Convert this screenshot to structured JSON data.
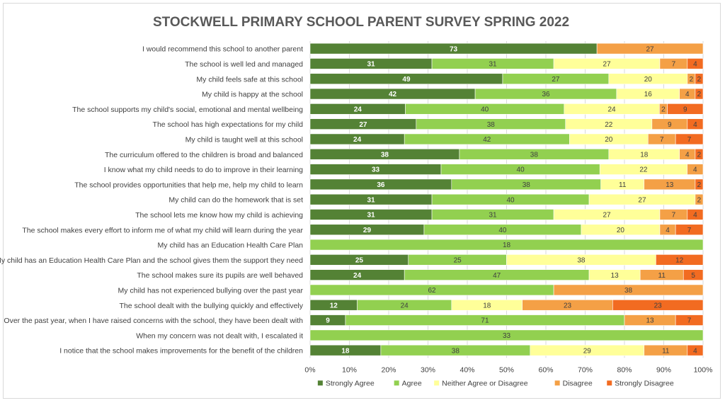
{
  "chart_data": {
    "type": "bar",
    "orientation": "horizontal",
    "stacked": "percent",
    "title": "STOCKWELL PRIMARY SCHOOL PARENT SURVEY SPRING 2022",
    "xlim": [
      0,
      100
    ],
    "x_ticks": [
      "0%",
      "10%",
      "20%",
      "30%",
      "40%",
      "50%",
      "60%",
      "70%",
      "80%",
      "90%",
      "100%"
    ],
    "grid": true,
    "legend_position": "bottom",
    "categories": [
      "I would recommend this school to another parent",
      "The school is well led and managed",
      "My child feels safe at this school",
      "My child is happy at the school",
      "The school supports my child's social, emotional and mental wellbeing",
      "The school has high expectations for my child",
      "My child is taught well at this school",
      "The curriculum offered to the children is broad and balanced",
      "I know what my child needs to do to improve in their learning",
      "The school provides opportunities that help me, help my child to learn",
      "My child can do the homework that is set",
      "The school lets me know how my child is achieving",
      "The school makes every effort to inform me of what my child will learn during the year",
      "My child has an Education Health Care Plan",
      "My child has an Education Health Care Plan and the school gives them the support they need",
      "The school makes sure its pupils are well behaved",
      "My child has not experienced bullying over the past year",
      "The school dealt with the bullying quickly and effectively",
      "Over the past year, when I have raised concerns with the school, they have been dealt with",
      "When my concern was not dealt with, I escalated it",
      "I notice that the school makes improvements for the benefit of the children"
    ],
    "series": [
      {
        "name": "Strongly Agree",
        "color": "#548235",
        "label_color": "#ffffff",
        "values": [
          73,
          31,
          49,
          42,
          24,
          27,
          24,
          38,
          33,
          36,
          31,
          31,
          29,
          0,
          25,
          24,
          0,
          12,
          9,
          0,
          18
        ]
      },
      {
        "name": "Agree",
        "color": "#92d050",
        "label_color": "#404040",
        "values": [
          0,
          31,
          27,
          36,
          40,
          38,
          42,
          38,
          40,
          38,
          40,
          31,
          40,
          18,
          25,
          47,
          62,
          24,
          71,
          33,
          38
        ]
      },
      {
        "name": "Neither Agree or Disagree",
        "color": "#ffff99",
        "label_color": "#404040",
        "values": [
          0,
          27,
          20,
          16,
          24,
          22,
          20,
          18,
          22,
          11,
          27,
          27,
          20,
          0,
          38,
          13,
          0,
          18,
          0,
          0,
          29
        ]
      },
      {
        "name": "Disagree",
        "color": "#f4a046",
        "label_color": "#404040",
        "values": [
          27,
          7,
          2,
          4,
          2,
          9,
          7,
          4,
          4,
          13,
          2,
          7,
          4,
          0,
          0,
          11,
          38,
          23,
          13,
          0,
          11
        ]
      },
      {
        "name": "Strongly Disagree",
        "color": "#f26b21",
        "label_color": "#404040",
        "values": [
          0,
          4,
          2,
          2,
          9,
          4,
          7,
          2,
          0,
          2,
          0,
          4,
          7,
          0,
          12,
          5,
          0,
          23,
          7,
          0,
          4
        ]
      }
    ]
  }
}
